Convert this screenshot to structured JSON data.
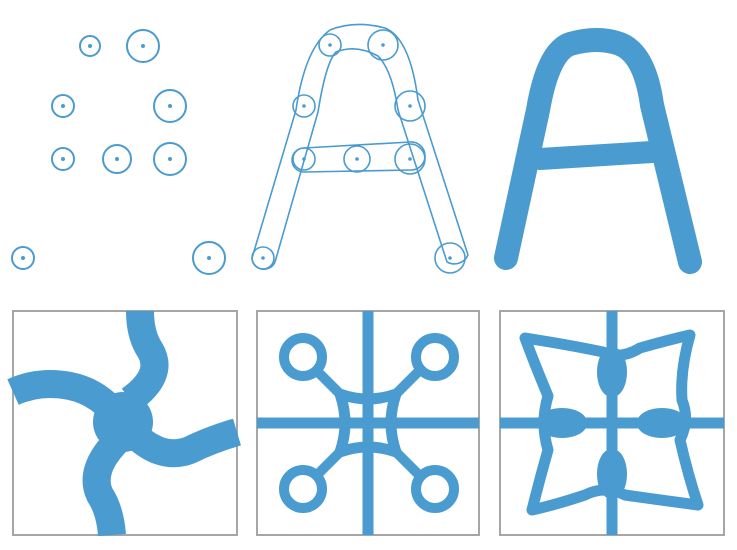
{
  "colors": {
    "stroke": "#4a9bcf",
    "panel_border": "#a6a6a6",
    "background": "#ffffff"
  },
  "panels": {
    "top": [
      "circle-centers-panel",
      "capsule-skeleton-panel",
      "stroked-letter-panel"
    ],
    "bottom": [
      "blobby-pattern-tile",
      "ring-pattern-tile",
      "loop-pattern-tile"
    ]
  }
}
